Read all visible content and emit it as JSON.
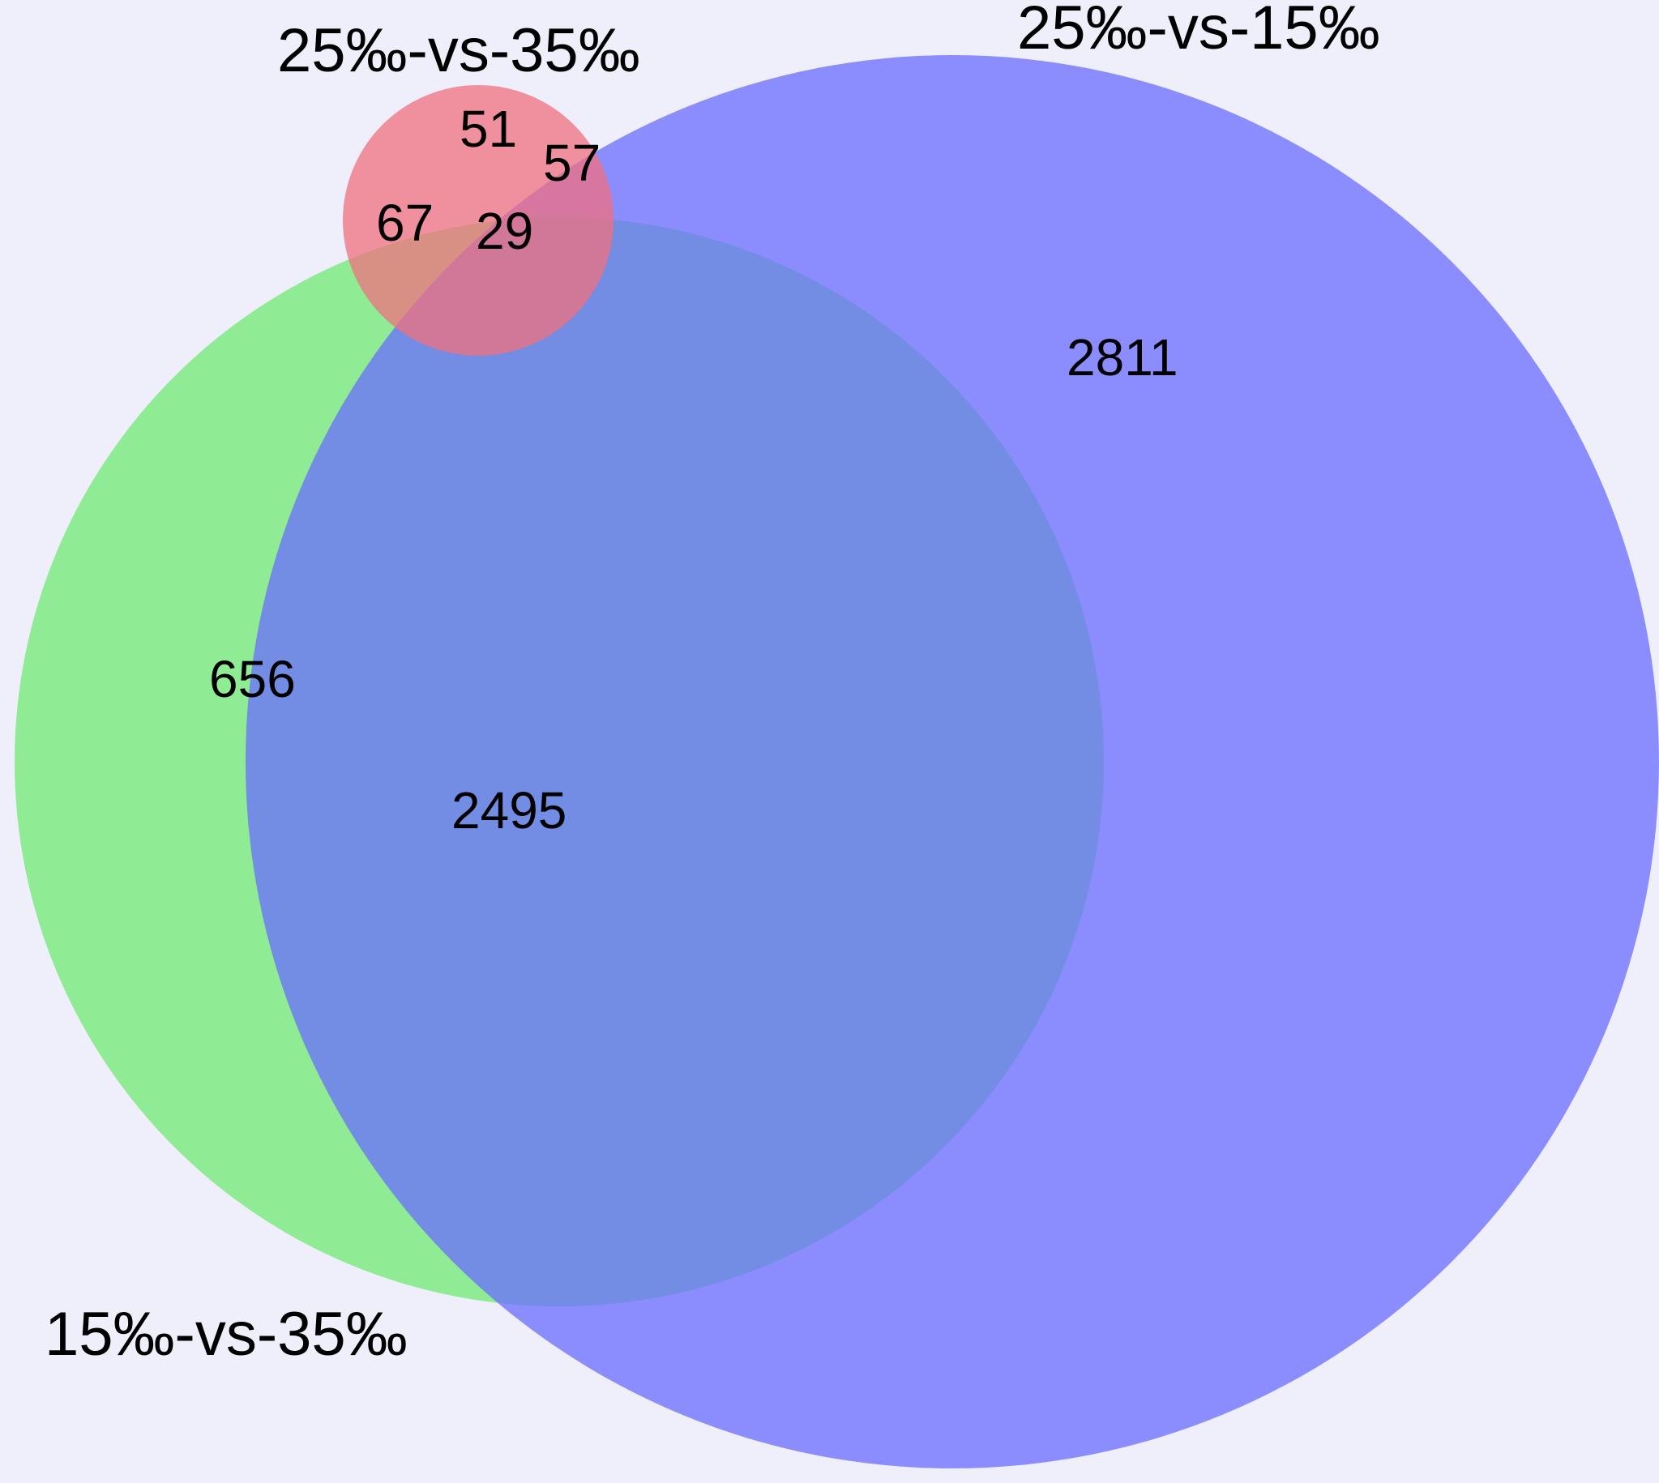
{
  "diagram": {
    "type": "venn",
    "background": "#efeffb",
    "sets": [
      {
        "id": "A",
        "label": "25‰-vs-35‰",
        "color": "#f0707f"
      },
      {
        "id": "B",
        "label": "25‰-vs-15‰",
        "color": "#6a6cff"
      },
      {
        "id": "C",
        "label": "15‰-vs-35‰",
        "color": "#6fea72"
      }
    ],
    "regions": {
      "A_only": "51",
      "A_B": "57",
      "A_C": "67",
      "A_B_C": "29",
      "B_only": "2811",
      "C_only": "656",
      "B_C": "2495"
    }
  }
}
